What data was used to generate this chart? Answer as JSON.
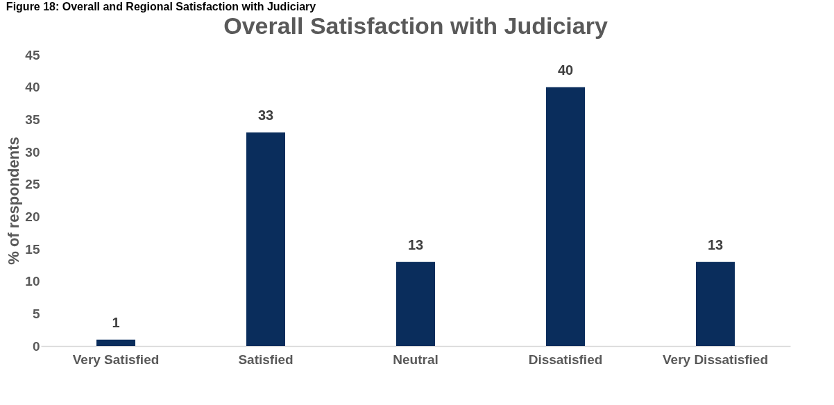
{
  "chart_data": {
    "type": "bar",
    "title": "Overall Satisfaction with Judiciary",
    "ylabel": "% of respondents",
    "categories": [
      "Very Satisfied",
      "Satisfied",
      "Neutral",
      "Dissatisfied",
      "Very Dissatisfied"
    ],
    "values": [
      1,
      33,
      13,
      40,
      13
    ],
    "color": "#0a2d5c",
    "ylim": [
      0,
      45
    ],
    "yticks": [
      0,
      5,
      10,
      15,
      20,
      25,
      30,
      35,
      40,
      45
    ],
    "grid": false,
    "data_labels": true,
    "annotations": [
      "Figure 18: Overall and Regional Satisfaction with Judiciary"
    ]
  }
}
